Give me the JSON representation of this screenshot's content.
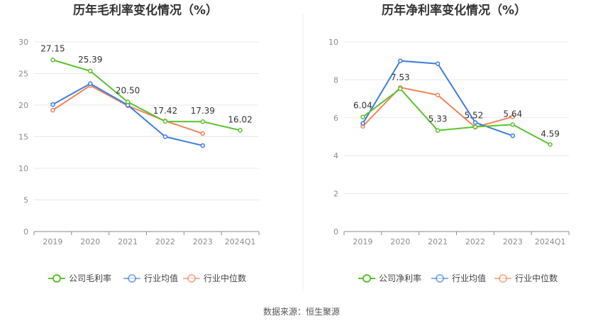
{
  "footer": {
    "source": "数据来源：恒生聚源"
  },
  "colors": {
    "company": "#5cc130",
    "avg": "#3f7ddc",
    "median": "#f0845a",
    "grid": "#e8e8e8",
    "axis": "#8c8c8c"
  },
  "chart_data": [
    {
      "type": "line",
      "title": "历年毛利率变化情况（%）",
      "categories": [
        "2019",
        "2020",
        "2021",
        "2022",
        "2023",
        "2024Q1"
      ],
      "ylim": [
        0,
        30
      ],
      "yticks": [
        0,
        5,
        10,
        15,
        20,
        25,
        30
      ],
      "grid": true,
      "legend": "bottom",
      "series": [
        {
          "name": "公司毛利率",
          "key": "company",
          "values": [
            27.15,
            25.39,
            20.5,
            17.42,
            17.39,
            16.02
          ],
          "labels": [
            "27.15",
            "25.39",
            "20.50",
            "17.42",
            "17.39",
            "16.02"
          ]
        },
        {
          "name": "行业均值",
          "key": "avg",
          "values": [
            20.1,
            23.4,
            20.0,
            15.0,
            13.6,
            null
          ]
        },
        {
          "name": "行业中位数",
          "key": "median",
          "values": [
            19.2,
            23.1,
            19.9,
            17.5,
            15.5,
            null
          ]
        }
      ]
    },
    {
      "type": "line",
      "title": "历年净利率变化情况（%）",
      "categories": [
        "2019",
        "2020",
        "2021",
        "2022",
        "2023",
        "2024Q1"
      ],
      "ylim": [
        0,
        10
      ],
      "yticks": [
        0,
        2,
        4,
        6,
        8,
        10
      ],
      "grid": true,
      "legend": "bottom",
      "series": [
        {
          "name": "公司净利率",
          "key": "company",
          "values": [
            6.04,
            7.53,
            5.33,
            5.52,
            5.64,
            4.59
          ],
          "labels": [
            "6.04",
            "7.53",
            "5.33",
            "5.52",
            "5.64",
            "4.59"
          ]
        },
        {
          "name": "行业均值",
          "key": "avg",
          "values": [
            5.7,
            9.0,
            8.85,
            5.75,
            5.05,
            null
          ]
        },
        {
          "name": "行业中位数",
          "key": "median",
          "values": [
            5.55,
            7.6,
            7.2,
            5.5,
            6.05,
            null
          ]
        }
      ]
    }
  ]
}
